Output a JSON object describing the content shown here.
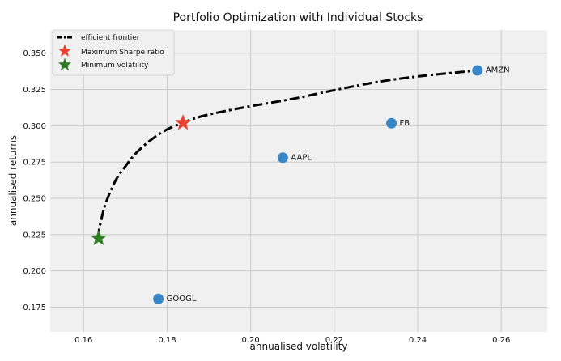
{
  "chart_data": {
    "type": "scatter",
    "title": "Portfolio Optimization with Individual Stocks",
    "xlabel": "annualised volatility",
    "ylabel": "annualised returns",
    "xlim": [
      0.152,
      0.271
    ],
    "ylim": [
      0.158,
      0.366
    ],
    "x_ticks": [
      0.16,
      0.18,
      0.2,
      0.22,
      0.24,
      0.26
    ],
    "x_tick_labels": [
      "0.16",
      "0.18",
      "0.20",
      "0.22",
      "0.24",
      "0.26"
    ],
    "y_ticks": [
      0.175,
      0.2,
      0.225,
      0.25,
      0.275,
      0.3,
      0.325,
      0.35
    ],
    "y_tick_labels": [
      "0.175",
      "0.200",
      "0.225",
      "0.250",
      "0.275",
      "0.300",
      "0.325",
      "0.350"
    ],
    "grid": true,
    "legend_position": "top-left",
    "background_color": "#f0f0f0",
    "grid_color": "#cbcbcb",
    "stocks": [
      {
        "name": "AMZN",
        "x": 0.2543,
        "y": 0.3381
      },
      {
        "name": "FB",
        "x": 0.2337,
        "y": 0.3017
      },
      {
        "name": "AAPL",
        "x": 0.2077,
        "y": 0.278
      },
      {
        "name": "GOOGL",
        "x": 0.1779,
        "y": 0.1807
      }
    ],
    "stock_marker_color": "#3a87c8",
    "frontier": {
      "name": "efficient frontier",
      "color": "#000000",
      "style": "dash-dot",
      "x": [
        0.1636,
        0.1637,
        0.1642,
        0.165,
        0.1663,
        0.168,
        0.17,
        0.1725,
        0.176,
        0.18,
        0.1838,
        0.187,
        0.192,
        0.2,
        0.21,
        0.22,
        0.23,
        0.24,
        0.2543
      ],
      "y": [
        0.2225,
        0.228,
        0.235,
        0.244,
        0.254,
        0.264,
        0.272,
        0.281,
        0.29,
        0.2975,
        0.302,
        0.3055,
        0.309,
        0.3135,
        0.3185,
        0.3245,
        0.33,
        0.334,
        0.3381
      ]
    },
    "special_points": [
      {
        "name": "Maximum Sharpe ratio",
        "x": 0.1838,
        "y": 0.302,
        "color": "#e8412f",
        "marker": "star"
      },
      {
        "name": "Minimum volatility",
        "x": 0.1636,
        "y": 0.2225,
        "color": "#2e7d23",
        "marker": "star"
      }
    ]
  }
}
